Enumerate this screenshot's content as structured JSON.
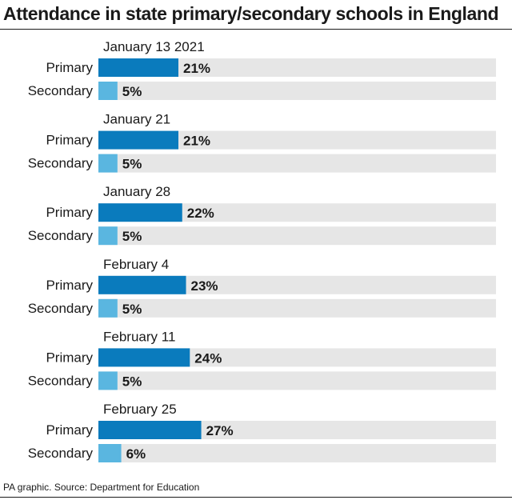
{
  "title": "Attendance in state primary/secondary schools in England",
  "footer": "PA graphic. Source: Department for Education",
  "colors": {
    "primary": "#0a7bbd",
    "secondary": "#5ab6e0",
    "track": "#e6e6e6"
  },
  "chart_data": {
    "type": "bar",
    "orientation": "horizontal",
    "title": "Attendance in state primary/secondary schools in England",
    "xlim": [
      0,
      100
    ],
    "grid": false,
    "legend": "none",
    "value_suffix": "%",
    "groups": [
      {
        "label": "January 13 2021",
        "bars": [
          {
            "category": "Primary",
            "value": 21
          },
          {
            "category": "Secondary",
            "value": 5
          }
        ]
      },
      {
        "label": "January 21",
        "bars": [
          {
            "category": "Primary",
            "value": 21
          },
          {
            "category": "Secondary",
            "value": 5
          }
        ]
      },
      {
        "label": "January 28",
        "bars": [
          {
            "category": "Primary",
            "value": 22
          },
          {
            "category": "Secondary",
            "value": 5
          }
        ]
      },
      {
        "label": "February 4",
        "bars": [
          {
            "category": "Primary",
            "value": 23
          },
          {
            "category": "Secondary",
            "value": 5
          }
        ]
      },
      {
        "label": "February 11",
        "bars": [
          {
            "category": "Primary",
            "value": 24
          },
          {
            "category": "Secondary",
            "value": 5
          }
        ]
      },
      {
        "label": "February 25",
        "bars": [
          {
            "category": "Primary",
            "value": 27
          },
          {
            "category": "Secondary",
            "value": 6
          }
        ]
      }
    ]
  }
}
